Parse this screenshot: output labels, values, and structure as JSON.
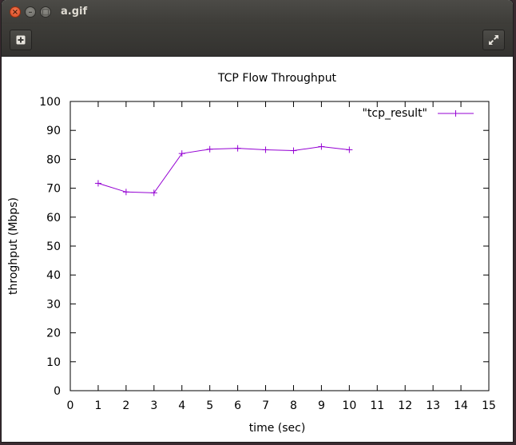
{
  "window": {
    "title": "a.gif",
    "close_glyph": "×",
    "minimize_glyph": "–",
    "maximize_glyph": "□"
  },
  "toolbar": {
    "add_icon": "plus-box-icon",
    "fullscreen_icon": "fullscreen-arrows-icon"
  },
  "chart_data": {
    "type": "line",
    "title": "TCP Flow Throughput",
    "xlabel": "time (sec)",
    "ylabel": "throghput (Mbps)",
    "xlim": [
      0,
      15
    ],
    "ylim": [
      0,
      100
    ],
    "xticks": [
      0,
      1,
      2,
      3,
      4,
      5,
      6,
      7,
      8,
      9,
      10,
      11,
      12,
      13,
      14,
      15
    ],
    "yticks": [
      0,
      10,
      20,
      30,
      40,
      50,
      60,
      70,
      80,
      90,
      100
    ],
    "grid": false,
    "legend_position": "top-right",
    "series": [
      {
        "name": "\"tcp_result\"",
        "color": "#9400d3",
        "marker": "plus",
        "x": [
          1,
          2,
          3,
          4,
          5,
          6,
          7,
          8,
          9,
          10
        ],
        "y": [
          71.7,
          68.7,
          68.4,
          82.0,
          83.5,
          83.8,
          83.3,
          83.0,
          84.4,
          83.3
        ]
      }
    ]
  }
}
